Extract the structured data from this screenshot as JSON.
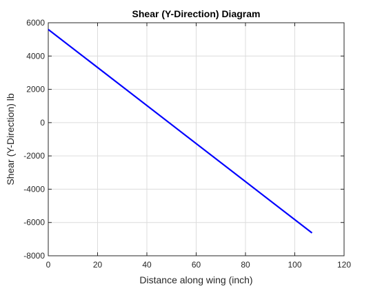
{
  "chart_data": {
    "type": "line",
    "title": "Shear (Y-Direction) Diagram",
    "xlabel": "Distance along wing (inch)",
    "ylabel": "Shear (Y-Direction) lb",
    "xlim": [
      0,
      120
    ],
    "ylim": [
      -8000,
      6000
    ],
    "x_ticks": [
      0,
      20,
      40,
      60,
      80,
      100,
      120
    ],
    "y_ticks": [
      -8000,
      -6000,
      -4000,
      -2000,
      0,
      2000,
      4000,
      6000
    ],
    "grid": true,
    "series": [
      {
        "color": "#0000ff",
        "x": [
          0,
          107
        ],
        "y": [
          5600,
          -6630
        ]
      }
    ]
  }
}
